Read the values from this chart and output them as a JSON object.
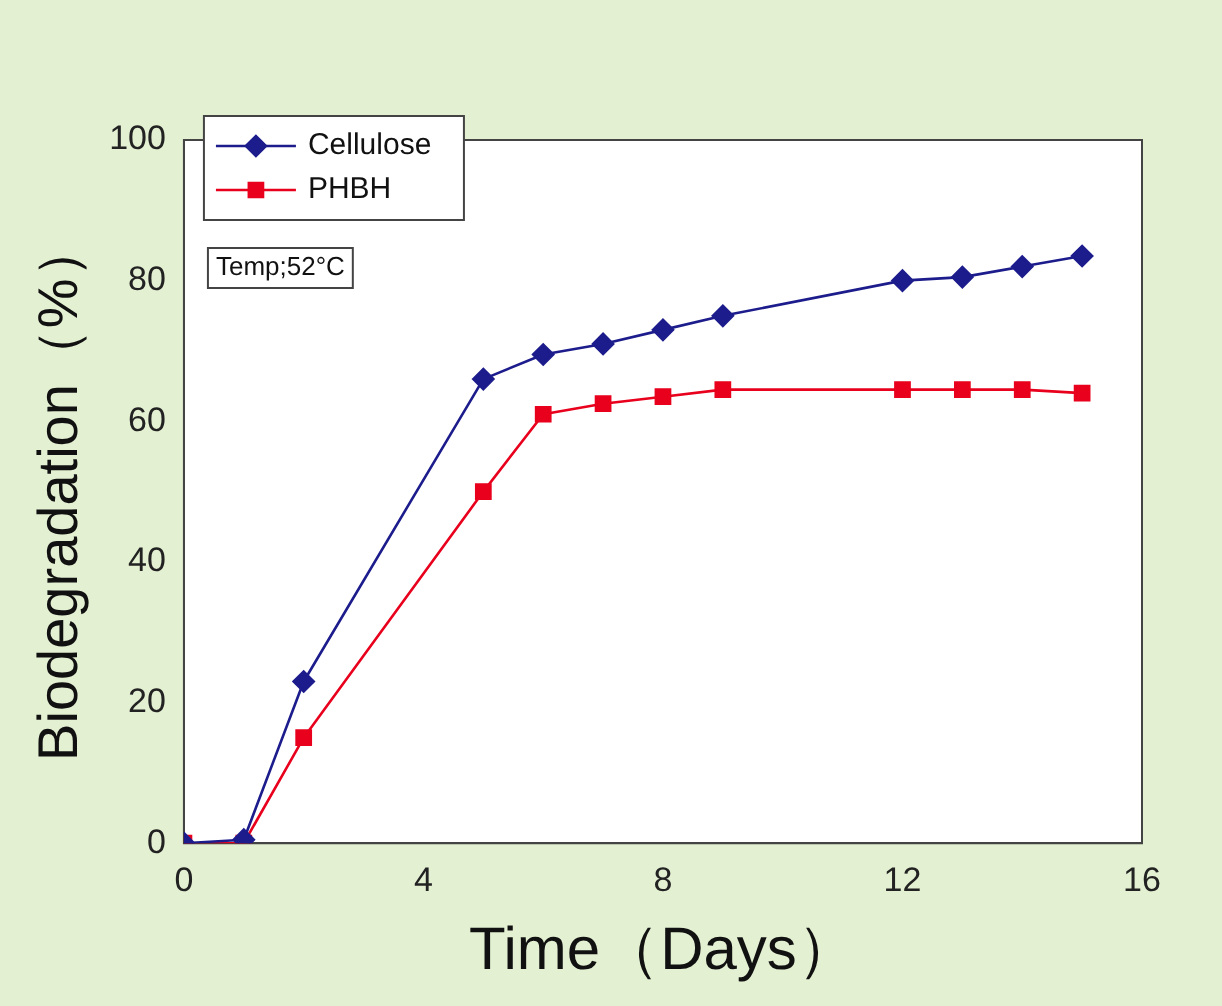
{
  "chart_data": {
    "type": "line",
    "xlabel": "Time（Days）",
    "ylabel": "Biodegradation（%）",
    "xlim": [
      0,
      16
    ],
    "xticks": [
      0,
      4,
      8,
      12,
      16
    ],
    "ylim": [
      0,
      100
    ],
    "yticks": [
      0,
      20,
      40,
      60,
      80,
      100
    ],
    "grid": false,
    "legend": "top left",
    "line_style": "solid",
    "annotations": [
      "Temp;52°C"
    ],
    "series": [
      {
        "name": "Cellulose",
        "color": "#1c1c8c",
        "marker": "diamond",
        "x": [
          0,
          1,
          2,
          5,
          6,
          7,
          8,
          9,
          12,
          13,
          14,
          15
        ],
        "values": [
          0,
          0.5,
          23,
          66,
          69.5,
          71,
          73,
          75,
          80,
          80.5,
          82,
          83.5
        ]
      },
      {
        "name": "PHBH",
        "color": "#e8001c",
        "marker": "square",
        "x": [
          0,
          1,
          2,
          5,
          6,
          7,
          8,
          9,
          12,
          13,
          14,
          15
        ],
        "values": [
          0,
          0,
          15,
          50,
          61,
          62.5,
          63.5,
          64.5,
          64.5,
          64.5,
          64.5,
          64
        ]
      }
    ]
  }
}
